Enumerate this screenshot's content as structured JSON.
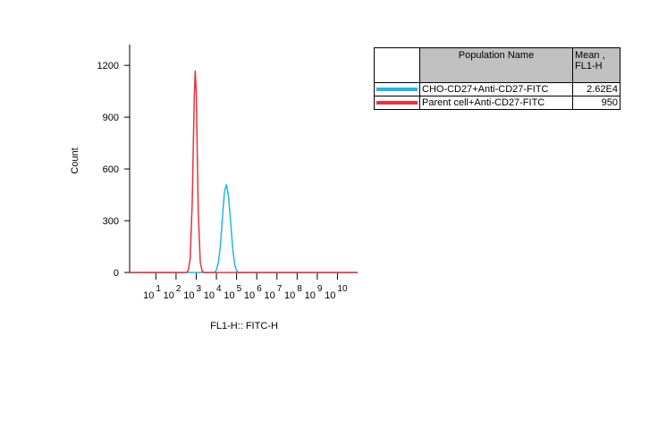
{
  "chart_data": {
    "type": "histogram-overlay",
    "x_label": "FL1-H:: FITC-H",
    "y_label": "Count",
    "xlog": true,
    "xlim": [
      0.5,
      100000000000
    ],
    "xticks": [
      {
        "value": 10,
        "label": "10",
        "exponent": "1"
      },
      {
        "value": 100,
        "label": "10",
        "exponent": "2"
      },
      {
        "value": 1000,
        "label": "10",
        "exponent": "3"
      },
      {
        "value": 10000,
        "label": "10",
        "exponent": "4"
      },
      {
        "value": 100000,
        "label": "10",
        "exponent": "5"
      },
      {
        "value": 1000000,
        "label": "10",
        "exponent": "6"
      },
      {
        "value": 10000000,
        "label": "10",
        "exponent": "7"
      },
      {
        "value": 100000000,
        "label": "10",
        "exponent": "8"
      },
      {
        "value": 1000000000,
        "label": "10",
        "exponent": "9"
      },
      {
        "value": 10000000000,
        "label": "10",
        "exponent": "10"
      }
    ],
    "ylim": [
      0,
      1320
    ],
    "yticks": [
      0,
      300,
      600,
      900,
      1200
    ],
    "table_headers": [
      "Population Name",
      "Mean , FL1-H"
    ],
    "series": [
      {
        "name": "CHO-CD27+Anti-CD27-FITC",
        "color": "#1fb8e0",
        "mean": 26200,
        "mean_label": "2.62E4",
        "x": [
          0.5,
          7943,
          10000,
          12589,
          15849,
          19953,
          25119,
          31623,
          39811,
          50119,
          63096,
          79433,
          100000,
          125893,
          100000000000
        ],
        "values": [
          0,
          0,
          15,
          60,
          160,
          320,
          470,
          510,
          440,
          300,
          150,
          50,
          10,
          0,
          0
        ]
      },
      {
        "name": "Parent cell+Anti-CD27-FITC",
        "color": "#e8333a",
        "mean": 950,
        "x": [
          0.5,
          316,
          398,
          501,
          631,
          708,
          794,
          891,
          1000,
          1122,
          1259,
          1585,
          1995,
          2512,
          100000000000
        ],
        "values": [
          0,
          0,
          10,
          80,
          400,
          700,
          1000,
          1170,
          1050,
          700,
          350,
          60,
          5,
          0,
          0
        ]
      }
    ]
  }
}
